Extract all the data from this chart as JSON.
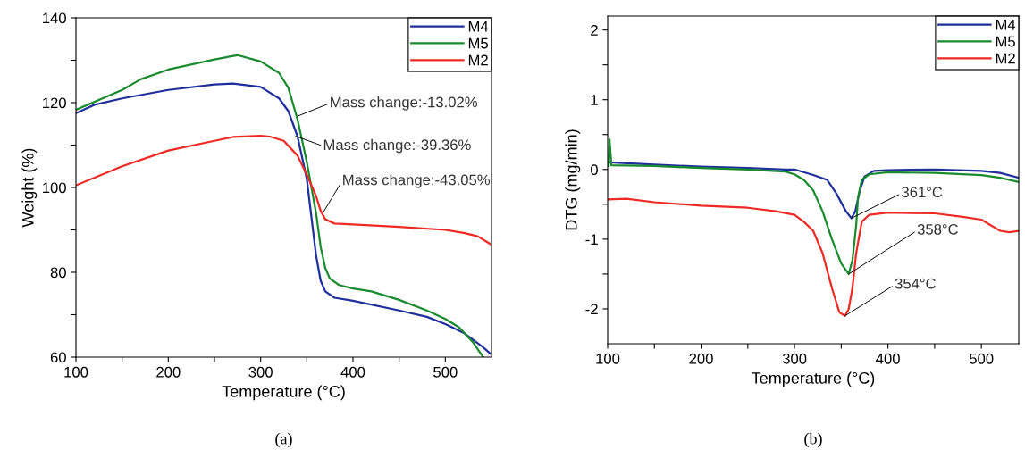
{
  "chart_data": [
    {
      "type": "line",
      "xlabel": "Temperature (°C)",
      "ylabel": "Weight (%)",
      "xlim": [
        100,
        550
      ],
      "ylim": [
        60,
        140
      ],
      "xticks": [
        100,
        {
          "value": 150,
          "label": null
        },
        200,
        {
          "value": 250,
          "label": null
        },
        300,
        {
          "value": 350,
          "label": null
        },
        400,
        {
          "value": 450,
          "label": null
        },
        500
      ],
      "yticks": [
        60,
        {
          "value": 70,
          "label": null
        },
        80,
        {
          "value": 90,
          "label": null
        },
        100,
        {
          "value": 110,
          "label": null
        },
        120,
        {
          "value": 130,
          "label": null
        },
        140
      ],
      "legend": "top right",
      "grid": false,
      "series": [
        {
          "name": "M4",
          "color": "#1f2f9c",
          "x": [
            100,
            120,
            150,
            200,
            250,
            270,
            300,
            320,
            330,
            340,
            350,
            355,
            360,
            365,
            370,
            380,
            400,
            450,
            480,
            500,
            520,
            540,
            550
          ],
          "values": [
            117.5,
            119.5,
            121,
            123,
            124.3,
            124.5,
            123.7,
            121,
            118,
            112,
            102,
            93,
            84,
            78,
            75.5,
            74,
            73.3,
            71,
            69.5,
            67.8,
            65.7,
            62.5,
            60.6
          ]
        },
        {
          "name": "M5",
          "color": "#1a8a2e",
          "x": [
            100,
            150,
            170,
            200,
            250,
            275,
            300,
            320,
            330,
            340,
            350,
            360,
            365,
            370,
            375,
            385,
            400,
            420,
            450,
            480,
            500,
            515,
            530,
            541
          ],
          "values": [
            118.3,
            123,
            125.5,
            127.8,
            130.2,
            131.2,
            129.7,
            127,
            123.5,
            116,
            106,
            94,
            86,
            81,
            78.5,
            77,
            76.2,
            75.5,
            73.5,
            71,
            69,
            67,
            63.5,
            60
          ]
        },
        {
          "name": "M2",
          "color": "#ee2a24",
          "x": [
            100,
            150,
            200,
            250,
            270,
            300,
            310,
            325,
            340,
            350,
            360,
            365,
            370,
            380,
            400,
            450,
            500,
            520,
            535,
            550
          ],
          "values": [
            100.5,
            105,
            108.7,
            111,
            111.9,
            112.2,
            112,
            111,
            107.5,
            103,
            98,
            94.5,
            92.5,
            91.5,
            91.3,
            90.7,
            90,
            89.3,
            88.5,
            86.5
          ]
        }
      ],
      "annotations": [
        {
          "text": "Mass change:-13.02%",
          "x": 341,
          "y": 116.9
        },
        {
          "text": "Mass change:-39.36%",
          "x": 338,
          "y": 112.1
        },
        {
          "text": "Mass change:-43.05%",
          "x": 368,
          "y": 94.2
        },
        "(a)"
      ]
    },
    {
      "type": "line",
      "xlabel": "Temperature (°C)",
      "ylabel": "DTG (mg/min)",
      "xlim": [
        100,
        540
      ],
      "ylim": [
        -2.5,
        2.2
      ],
      "xticks": [
        100,
        {
          "value": 150,
          "label": null
        },
        200,
        {
          "value": 250,
          "label": null
        },
        300,
        {
          "value": 350,
          "label": null
        },
        400,
        {
          "value": 450,
          "label": null
        },
        500
      ],
      "yticks": [
        -2,
        {
          "value": -1.5,
          "label": null
        },
        -1,
        {
          "value": -0.5,
          "label": null
        },
        0,
        {
          "value": 0.5,
          "label": null
        },
        1,
        {
          "value": 1.5,
          "label": null
        },
        2
      ],
      "legend": "top right",
      "grid": false,
      "series": [
        {
          "name": "M4",
          "color": "#1f2f9c",
          "x": [
            103,
            150,
            200,
            250,
            290,
            300,
            320,
            335,
            345,
            355,
            361,
            365,
            370,
            375,
            385,
            400,
            450,
            500,
            520,
            540
          ],
          "values": [
            0.1,
            0.07,
            0.04,
            0.02,
            0.0,
            0.0,
            -0.08,
            -0.15,
            -0.35,
            -0.6,
            -0.7,
            -0.6,
            -0.3,
            -0.1,
            -0.02,
            -0.01,
            0.0,
            -0.02,
            -0.05,
            -0.12
          ]
        },
        {
          "name": "M5",
          "color": "#1a8a2e",
          "x": [
            101,
            102,
            104,
            150,
            200,
            250,
            290,
            300,
            310,
            320,
            330,
            340,
            350,
            358,
            362,
            366,
            368,
            372,
            380,
            400,
            450,
            500,
            520,
            540
          ],
          "values": [
            0.05,
            0.43,
            0.06,
            0.05,
            0.02,
            0.0,
            -0.03,
            -0.07,
            -0.15,
            -0.3,
            -0.6,
            -1.0,
            -1.35,
            -1.5,
            -1.3,
            -0.8,
            -0.4,
            -0.15,
            -0.07,
            -0.04,
            -0.05,
            -0.08,
            -0.12,
            -0.18
          ]
        },
        {
          "name": "M2",
          "color": "#ee2a24",
          "x": [
            100,
            120,
            150,
            200,
            250,
            280,
            300,
            310,
            320,
            330,
            340,
            348,
            354,
            358,
            362,
            366,
            372,
            380,
            400,
            450,
            480,
            500,
            520,
            530,
            540
          ],
          "values": [
            -0.43,
            -0.42,
            -0.47,
            -0.52,
            -0.55,
            -0.6,
            -0.65,
            -0.75,
            -0.88,
            -1.2,
            -1.7,
            -2.05,
            -2.1,
            -2.0,
            -1.7,
            -1.2,
            -0.75,
            -0.65,
            -0.62,
            -0.63,
            -0.68,
            -0.72,
            -0.88,
            -0.9,
            -0.88
          ]
        }
      ],
      "annotations": [
        {
          "text": "361°C",
          "x": 361,
          "y": -0.7
        },
        {
          "text": "358°C",
          "x": 358,
          "y": -1.5
        },
        {
          "text": "354°C",
          "x": 354,
          "y": -2.1
        },
        "(b)"
      ]
    }
  ]
}
